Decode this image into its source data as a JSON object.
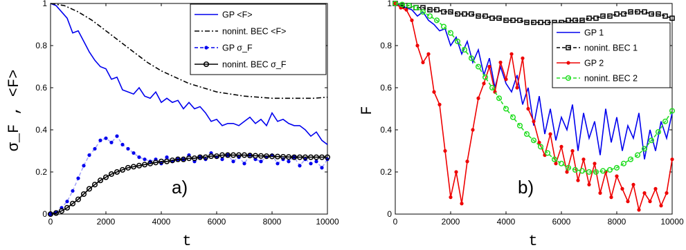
{
  "chart_data": [
    {
      "type": "line",
      "panel_label": "a)",
      "xlabel": "t",
      "ylabel": "σ_F , <F>",
      "xlim": [
        0,
        10000
      ],
      "ylim": [
        0,
        1
      ],
      "xticks": [
        "0",
        "2000",
        "4000",
        "6000",
        "8000",
        "10000"
      ],
      "yticks": [
        "0",
        "0.2",
        "0.4",
        "0.6",
        "0.8",
        "1"
      ],
      "legend_position": "top-right",
      "series": [
        {
          "name": "GP <F>",
          "style": "solid",
          "marker": "none",
          "color": "#0000ee",
          "x": [
            0,
            200,
            400,
            600,
            800,
            1000,
            1200,
            1400,
            1600,
            1800,
            2000,
            2200,
            2400,
            2600,
            2800,
            3000,
            3200,
            3400,
            3600,
            3800,
            4000,
            4200,
            4400,
            4600,
            4800,
            5000,
            5200,
            5400,
            5600,
            5800,
            6000,
            6200,
            6400,
            6600,
            6800,
            7000,
            7200,
            7400,
            7600,
            7800,
            8000,
            8200,
            8400,
            8600,
            8800,
            9000,
            9200,
            9400,
            9600,
            9800,
            10000
          ],
          "y": [
            1.0,
            0.99,
            0.96,
            0.93,
            0.86,
            0.87,
            0.82,
            0.77,
            0.73,
            0.7,
            0.69,
            0.64,
            0.65,
            0.59,
            0.58,
            0.57,
            0.6,
            0.56,
            0.55,
            0.58,
            0.53,
            0.55,
            0.53,
            0.54,
            0.5,
            0.53,
            0.5,
            0.51,
            0.48,
            0.44,
            0.45,
            0.42,
            0.43,
            0.43,
            0.42,
            0.44,
            0.46,
            0.43,
            0.45,
            0.42,
            0.48,
            0.44,
            0.45,
            0.43,
            0.42,
            0.42,
            0.4,
            0.37,
            0.39,
            0.35,
            0.33
          ]
        },
        {
          "name": "nonint. BEC <F>",
          "style": "dashdot",
          "marker": "none",
          "color": "#000000",
          "x": [
            0,
            500,
            1000,
            1500,
            2000,
            2500,
            3000,
            3500,
            4000,
            4500,
            5000,
            5500,
            6000,
            6500,
            7000,
            7500,
            8000,
            8500,
            9000,
            9500,
            10000
          ],
          "y": [
            1.0,
            0.99,
            0.96,
            0.92,
            0.87,
            0.82,
            0.77,
            0.72,
            0.68,
            0.65,
            0.62,
            0.6,
            0.58,
            0.57,
            0.56,
            0.555,
            0.55,
            0.55,
            0.55,
            0.55,
            0.555
          ]
        },
        {
          "name": "GP σ_F",
          "style": "dashed",
          "marker": "dot",
          "color": "#0000ee",
          "x": [
            0,
            200,
            400,
            600,
            800,
            1000,
            1200,
            1400,
            1600,
            1800,
            2000,
            2200,
            2400,
            2600,
            2800,
            3000,
            3200,
            3400,
            3600,
            3800,
            4000,
            4200,
            4400,
            4600,
            4800,
            5000,
            5200,
            5400,
            5600,
            5800,
            6000,
            6200,
            6400,
            6600,
            6800,
            7000,
            7200,
            7400,
            7600,
            7800,
            8000,
            8200,
            8400,
            8600,
            8800,
            9000,
            9200,
            9400,
            9600,
            9800,
            10000
          ],
          "y": [
            0.0,
            0.01,
            0.03,
            0.06,
            0.11,
            0.17,
            0.23,
            0.28,
            0.31,
            0.35,
            0.36,
            0.34,
            0.37,
            0.33,
            0.31,
            0.29,
            0.27,
            0.26,
            0.25,
            0.26,
            0.24,
            0.27,
            0.25,
            0.26,
            0.26,
            0.28,
            0.25,
            0.27,
            0.26,
            0.29,
            0.27,
            0.26,
            0.28,
            0.25,
            0.27,
            0.24,
            0.28,
            0.26,
            0.25,
            0.27,
            0.28,
            0.24,
            0.26,
            0.25,
            0.27,
            0.23,
            0.26,
            0.24,
            0.25,
            0.22,
            0.26
          ]
        },
        {
          "name": "nonint. BEC σ_F",
          "style": "solid",
          "marker": "circle",
          "color": "#000000",
          "x": [
            0,
            200,
            400,
            600,
            800,
            1000,
            1200,
            1400,
            1600,
            1800,
            2000,
            2200,
            2400,
            2600,
            2800,
            3000,
            3200,
            3400,
            3600,
            3800,
            4000,
            4200,
            4400,
            4600,
            4800,
            5000,
            5200,
            5400,
            5600,
            5800,
            6000,
            6200,
            6400,
            6600,
            6800,
            7000,
            7200,
            7400,
            7600,
            7800,
            8000,
            8200,
            8400,
            8600,
            8800,
            9000,
            9200,
            9400,
            9600,
            9800,
            10000
          ],
          "y": [
            0.0,
            0.005,
            0.015,
            0.03,
            0.05,
            0.07,
            0.095,
            0.12,
            0.14,
            0.16,
            0.175,
            0.19,
            0.2,
            0.21,
            0.22,
            0.225,
            0.23,
            0.235,
            0.24,
            0.245,
            0.25,
            0.25,
            0.255,
            0.26,
            0.26,
            0.265,
            0.265,
            0.27,
            0.27,
            0.275,
            0.275,
            0.28,
            0.28,
            0.28,
            0.28,
            0.28,
            0.278,
            0.277,
            0.276,
            0.275,
            0.274,
            0.273,
            0.272,
            0.271,
            0.27,
            0.27,
            0.27,
            0.27,
            0.27,
            0.27,
            0.27
          ]
        }
      ]
    },
    {
      "type": "line",
      "panel_label": "b)",
      "xlabel": "t",
      "ylabel": "F",
      "xlim": [
        0,
        10000
      ],
      "ylim": [
        0,
        1
      ],
      "xticks": [
        "0",
        "2000",
        "4000",
        "6000",
        "8000",
        "10000"
      ],
      "yticks": [
        "0",
        "0.2",
        "0.4",
        "0.6",
        "0.8",
        "1"
      ],
      "legend_position": "top-right",
      "series": [
        {
          "name": "GP 1",
          "style": "solid",
          "marker": "none",
          "color": "#0000ee",
          "x": [
            0,
            200,
            400,
            600,
            800,
            1000,
            1200,
            1400,
            1600,
            1800,
            2000,
            2200,
            2400,
            2600,
            2800,
            3000,
            3200,
            3400,
            3600,
            3800,
            4000,
            4200,
            4400,
            4600,
            4800,
            5000,
            5200,
            5400,
            5600,
            5800,
            6000,
            6200,
            6400,
            6600,
            6800,
            7000,
            7200,
            7400,
            7600,
            7800,
            8000,
            8200,
            8400,
            8600,
            8800,
            9000,
            9200,
            9400,
            9600,
            9800,
            10000
          ],
          "y": [
            1.0,
            0.99,
            0.98,
            0.97,
            0.94,
            0.96,
            0.92,
            0.9,
            0.87,
            0.88,
            0.8,
            0.84,
            0.76,
            0.82,
            0.72,
            0.78,
            0.66,
            0.74,
            0.6,
            0.7,
            0.62,
            0.58,
            0.66,
            0.52,
            0.6,
            0.42,
            0.56,
            0.38,
            0.5,
            0.35,
            0.46,
            0.4,
            0.52,
            0.3,
            0.48,
            0.36,
            0.44,
            0.28,
            0.5,
            0.34,
            0.46,
            0.3,
            0.42,
            0.36,
            0.48,
            0.26,
            0.4,
            0.3,
            0.44,
            0.36,
            0.48
          ]
        },
        {
          "name": "nonint. BEC 1",
          "style": "dashed",
          "marker": "square",
          "color": "#000000",
          "x": [
            0,
            250,
            500,
            750,
            1000,
            1250,
            1500,
            1750,
            2000,
            2250,
            2500,
            2750,
            3000,
            3250,
            3500,
            3750,
            4000,
            4250,
            4500,
            4750,
            5000,
            5250,
            5500,
            5750,
            6000,
            6250,
            6500,
            6750,
            7000,
            7250,
            7500,
            7750,
            8000,
            8250,
            8500,
            8750,
            9000,
            9250,
            9500,
            9750,
            10000
          ],
          "y": [
            1.0,
            0.99,
            0.99,
            0.98,
            0.98,
            0.97,
            0.97,
            0.96,
            0.96,
            0.95,
            0.95,
            0.95,
            0.94,
            0.94,
            0.93,
            0.93,
            0.92,
            0.92,
            0.92,
            0.91,
            0.91,
            0.91,
            0.91,
            0.91,
            0.91,
            0.92,
            0.92,
            0.92,
            0.93,
            0.93,
            0.94,
            0.94,
            0.95,
            0.95,
            0.96,
            0.96,
            0.96,
            0.95,
            0.95,
            0.94,
            0.93
          ]
        },
        {
          "name": "GP 2",
          "style": "solid",
          "marker": "dot",
          "color": "#ee0000",
          "x": [
            0,
            200,
            400,
            600,
            800,
            1000,
            1200,
            1400,
            1600,
            1800,
            2000,
            2200,
            2400,
            2600,
            2800,
            3000,
            3200,
            3400,
            3600,
            3800,
            4000,
            4200,
            4400,
            4600,
            4800,
            5000,
            5200,
            5400,
            5600,
            5800,
            6000,
            6200,
            6400,
            6600,
            6800,
            7000,
            7200,
            7400,
            7600,
            7800,
            8000,
            8200,
            8400,
            8600,
            8800,
            9000,
            9200,
            9400,
            9600,
            9800,
            10000
          ],
          "y": [
            1.0,
            0.98,
            0.97,
            0.92,
            0.8,
            0.72,
            0.76,
            0.58,
            0.52,
            0.3,
            0.08,
            0.2,
            0.05,
            0.25,
            0.4,
            0.55,
            0.62,
            0.7,
            0.58,
            0.72,
            0.64,
            0.76,
            0.6,
            0.74,
            0.5,
            0.44,
            0.34,
            0.28,
            0.38,
            0.24,
            0.32,
            0.2,
            0.3,
            0.16,
            0.26,
            0.14,
            0.24,
            0.1,
            0.2,
            0.08,
            0.18,
            0.12,
            0.06,
            0.14,
            0.02,
            0.1,
            0.06,
            0.12,
            0.04,
            0.1,
            0.26
          ]
        },
        {
          "name": "nonint. BEC 2",
          "style": "dashed",
          "marker": "circle",
          "color": "#22dd22",
          "x": [
            0,
            250,
            500,
            750,
            1000,
            1250,
            1500,
            1750,
            2000,
            2250,
            2500,
            2750,
            3000,
            3250,
            3500,
            3750,
            4000,
            4250,
            4500,
            4750,
            5000,
            5250,
            5500,
            5750,
            6000,
            6250,
            6500,
            6750,
            7000,
            7250,
            7500,
            7750,
            8000,
            8250,
            8500,
            8750,
            9000,
            9250,
            9500,
            9750,
            10000
          ],
          "y": [
            1.0,
            0.995,
            0.99,
            0.98,
            0.96,
            0.94,
            0.92,
            0.89,
            0.86,
            0.82,
            0.78,
            0.74,
            0.7,
            0.65,
            0.6,
            0.55,
            0.5,
            0.46,
            0.42,
            0.38,
            0.35,
            0.32,
            0.29,
            0.26,
            0.24,
            0.22,
            0.21,
            0.205,
            0.2,
            0.2,
            0.205,
            0.21,
            0.22,
            0.24,
            0.26,
            0.28,
            0.31,
            0.35,
            0.39,
            0.44,
            0.49
          ]
        }
      ]
    }
  ]
}
